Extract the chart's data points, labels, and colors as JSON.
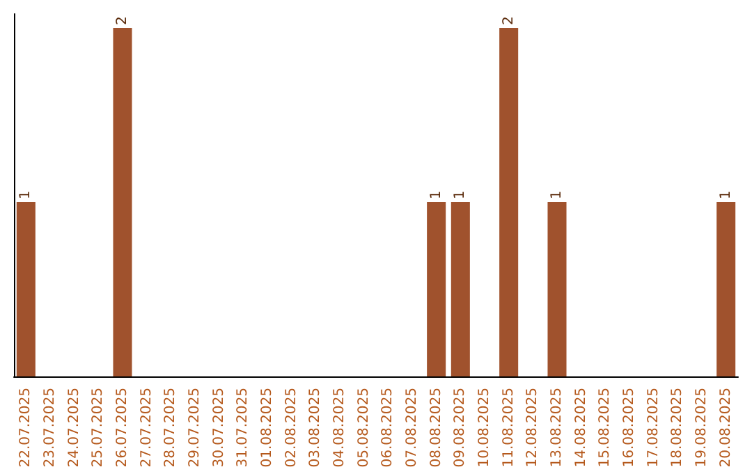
{
  "chart_data": {
    "type": "bar",
    "categories": [
      "22.07.2025",
      "23.07.2025",
      "24.07.2025",
      "25.07.2025",
      "26.07.2025",
      "27.07.2025",
      "28.07.2025",
      "29.07.2025",
      "30.07.2025",
      "31.07.2025",
      "01.08.2025",
      "02.08.2025",
      "03.08.2025",
      "04.08.2025",
      "05.08.2025",
      "06.08.2025",
      "07.08.2025",
      "08.08.2025",
      "09.08.2025",
      "10.08.2025",
      "11.08.2025",
      "12.08.2025",
      "13.08.2025",
      "14.08.2025",
      "15.08.2025",
      "16.08.2025",
      "17.08.2025",
      "18.08.2025",
      "19.08.2025",
      "20.08.2025"
    ],
    "values": [
      1,
      0,
      0,
      0,
      2,
      0,
      0,
      0,
      0,
      0,
      0,
      0,
      0,
      0,
      0,
      0,
      0,
      1,
      1,
      0,
      2,
      0,
      1,
      0,
      0,
      0,
      0,
      0,
      0,
      1
    ],
    "value_labels": [
      "1",
      null,
      null,
      null,
      "2",
      null,
      null,
      null,
      null,
      null,
      null,
      null,
      null,
      null,
      null,
      null,
      null,
      "1",
      "1",
      null,
      "2",
      null,
      "1",
      null,
      null,
      null,
      null,
      null,
      null,
      "1"
    ],
    "color": "#a0522d",
    "tick_labels": "x"
  }
}
